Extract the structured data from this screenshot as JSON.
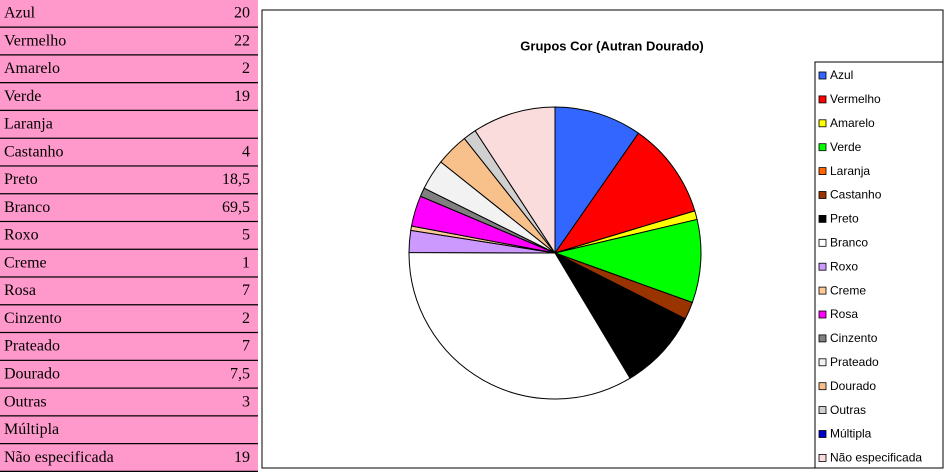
{
  "chart_data": {
    "type": "pie",
    "title": "Grupos Cor (Autran Dourado)",
    "categories": [
      "Azul",
      "Vermelho",
      "Amarelo",
      "Verde",
      "Laranja",
      "Castanho",
      "Preto",
      "Branco",
      "Roxo",
      "Creme",
      "Rosa",
      "Cinzento",
      "Prateado",
      "Dourado",
      "Outras",
      "Múltipla",
      "Não especificada"
    ],
    "values": [
      20,
      22,
      2,
      19,
      null,
      4,
      18.5,
      69.5,
      5,
      1,
      7,
      2,
      7,
      7.5,
      3,
      null,
      19
    ],
    "value_labels": [
      "20",
      "22",
      "2",
      "19",
      null,
      "4",
      "18,5",
      "69,5",
      "5",
      "1",
      "7",
      "2",
      "7",
      "7,5",
      "3",
      null,
      "19"
    ],
    "colors": [
      "#3366ff",
      "#ff0000",
      "#ffff00",
      "#00ff00",
      "#ff6600",
      "#993300",
      "#000000",
      "#ffffff",
      "#cc99ff",
      "#ffcc99",
      "#ff00ff",
      "#808080",
      "#f2f2f2",
      "#f8c08a",
      "#d0d0d0",
      "#0000cc",
      "#fbdcdc"
    ],
    "legend": "right"
  }
}
